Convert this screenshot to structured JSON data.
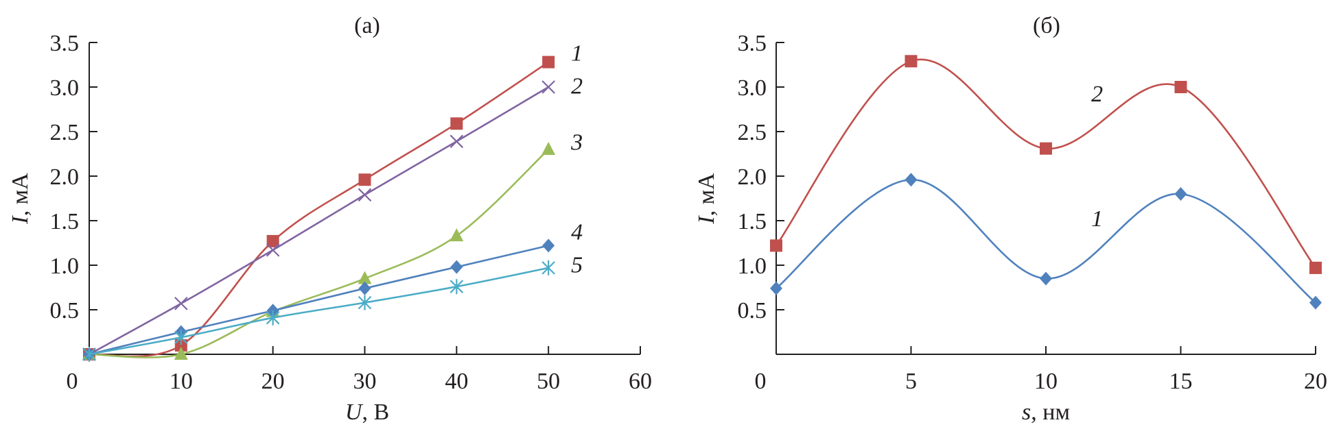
{
  "chart_data": [
    {
      "type": "line",
      "title": "(а)",
      "xlabel_var": "U",
      "xlabel_unit": ", В",
      "ylabel_var": "I",
      "ylabel_unit": ", мА",
      "xlim": [
        0,
        60
      ],
      "ylim": [
        0,
        3.5
      ],
      "x_ticks": [
        "0",
        "10",
        "20",
        "30",
        "40",
        "50",
        "60"
      ],
      "y_ticks": [
        "0.5",
        "1.0",
        "1.5",
        "2.0",
        "2.5",
        "3.0",
        "3.5"
      ],
      "grid": false,
      "x": [
        0,
        10,
        20,
        30,
        40,
        50
      ],
      "series": [
        {
          "name": "1",
          "marker": "square",
          "color": "#c0504d",
          "values": [
            0,
            0.1,
            1.27,
            1.96,
            2.59,
            3.28
          ]
        },
        {
          "name": "2",
          "marker": "x",
          "color": "#8064a2",
          "values": [
            0,
            0.57,
            1.17,
            1.79,
            2.39,
            3.0
          ]
        },
        {
          "name": "3",
          "marker": "triangle",
          "color": "#9bbb59",
          "values": [
            0,
            0.0,
            0.48,
            0.85,
            1.33,
            2.3
          ]
        },
        {
          "name": "4",
          "marker": "diamond",
          "color": "#4f81bd",
          "values": [
            0,
            0.25,
            0.49,
            0.74,
            0.98,
            1.22
          ]
        },
        {
          "name": "5",
          "marker": "star",
          "color": "#4bacc6",
          "values": [
            0,
            0.19,
            0.41,
            0.58,
            0.76,
            0.97
          ]
        }
      ]
    },
    {
      "type": "line",
      "title": "(б)",
      "xlabel_var": "s",
      "xlabel_unit": ", нм",
      "ylabel_var": "I",
      "ylabel_unit": ", мА",
      "xlim": [
        0,
        20
      ],
      "ylim": [
        0,
        3.5
      ],
      "x_ticks": [
        "0",
        "5",
        "10",
        "15",
        "20"
      ],
      "y_ticks": [
        "0.5",
        "1.0",
        "1.5",
        "2.0",
        "2.5",
        "3.0",
        "3.5"
      ],
      "grid": false,
      "x": [
        0,
        5,
        10,
        15,
        20
      ],
      "series": [
        {
          "name": "1",
          "marker": "diamond",
          "color": "#4f81bd",
          "values": [
            0.74,
            1.96,
            0.85,
            1.8,
            0.58
          ]
        },
        {
          "name": "2",
          "marker": "square",
          "color": "#c0504d",
          "values": [
            1.22,
            3.29,
            2.31,
            3.0,
            0.97
          ]
        }
      ]
    }
  ]
}
